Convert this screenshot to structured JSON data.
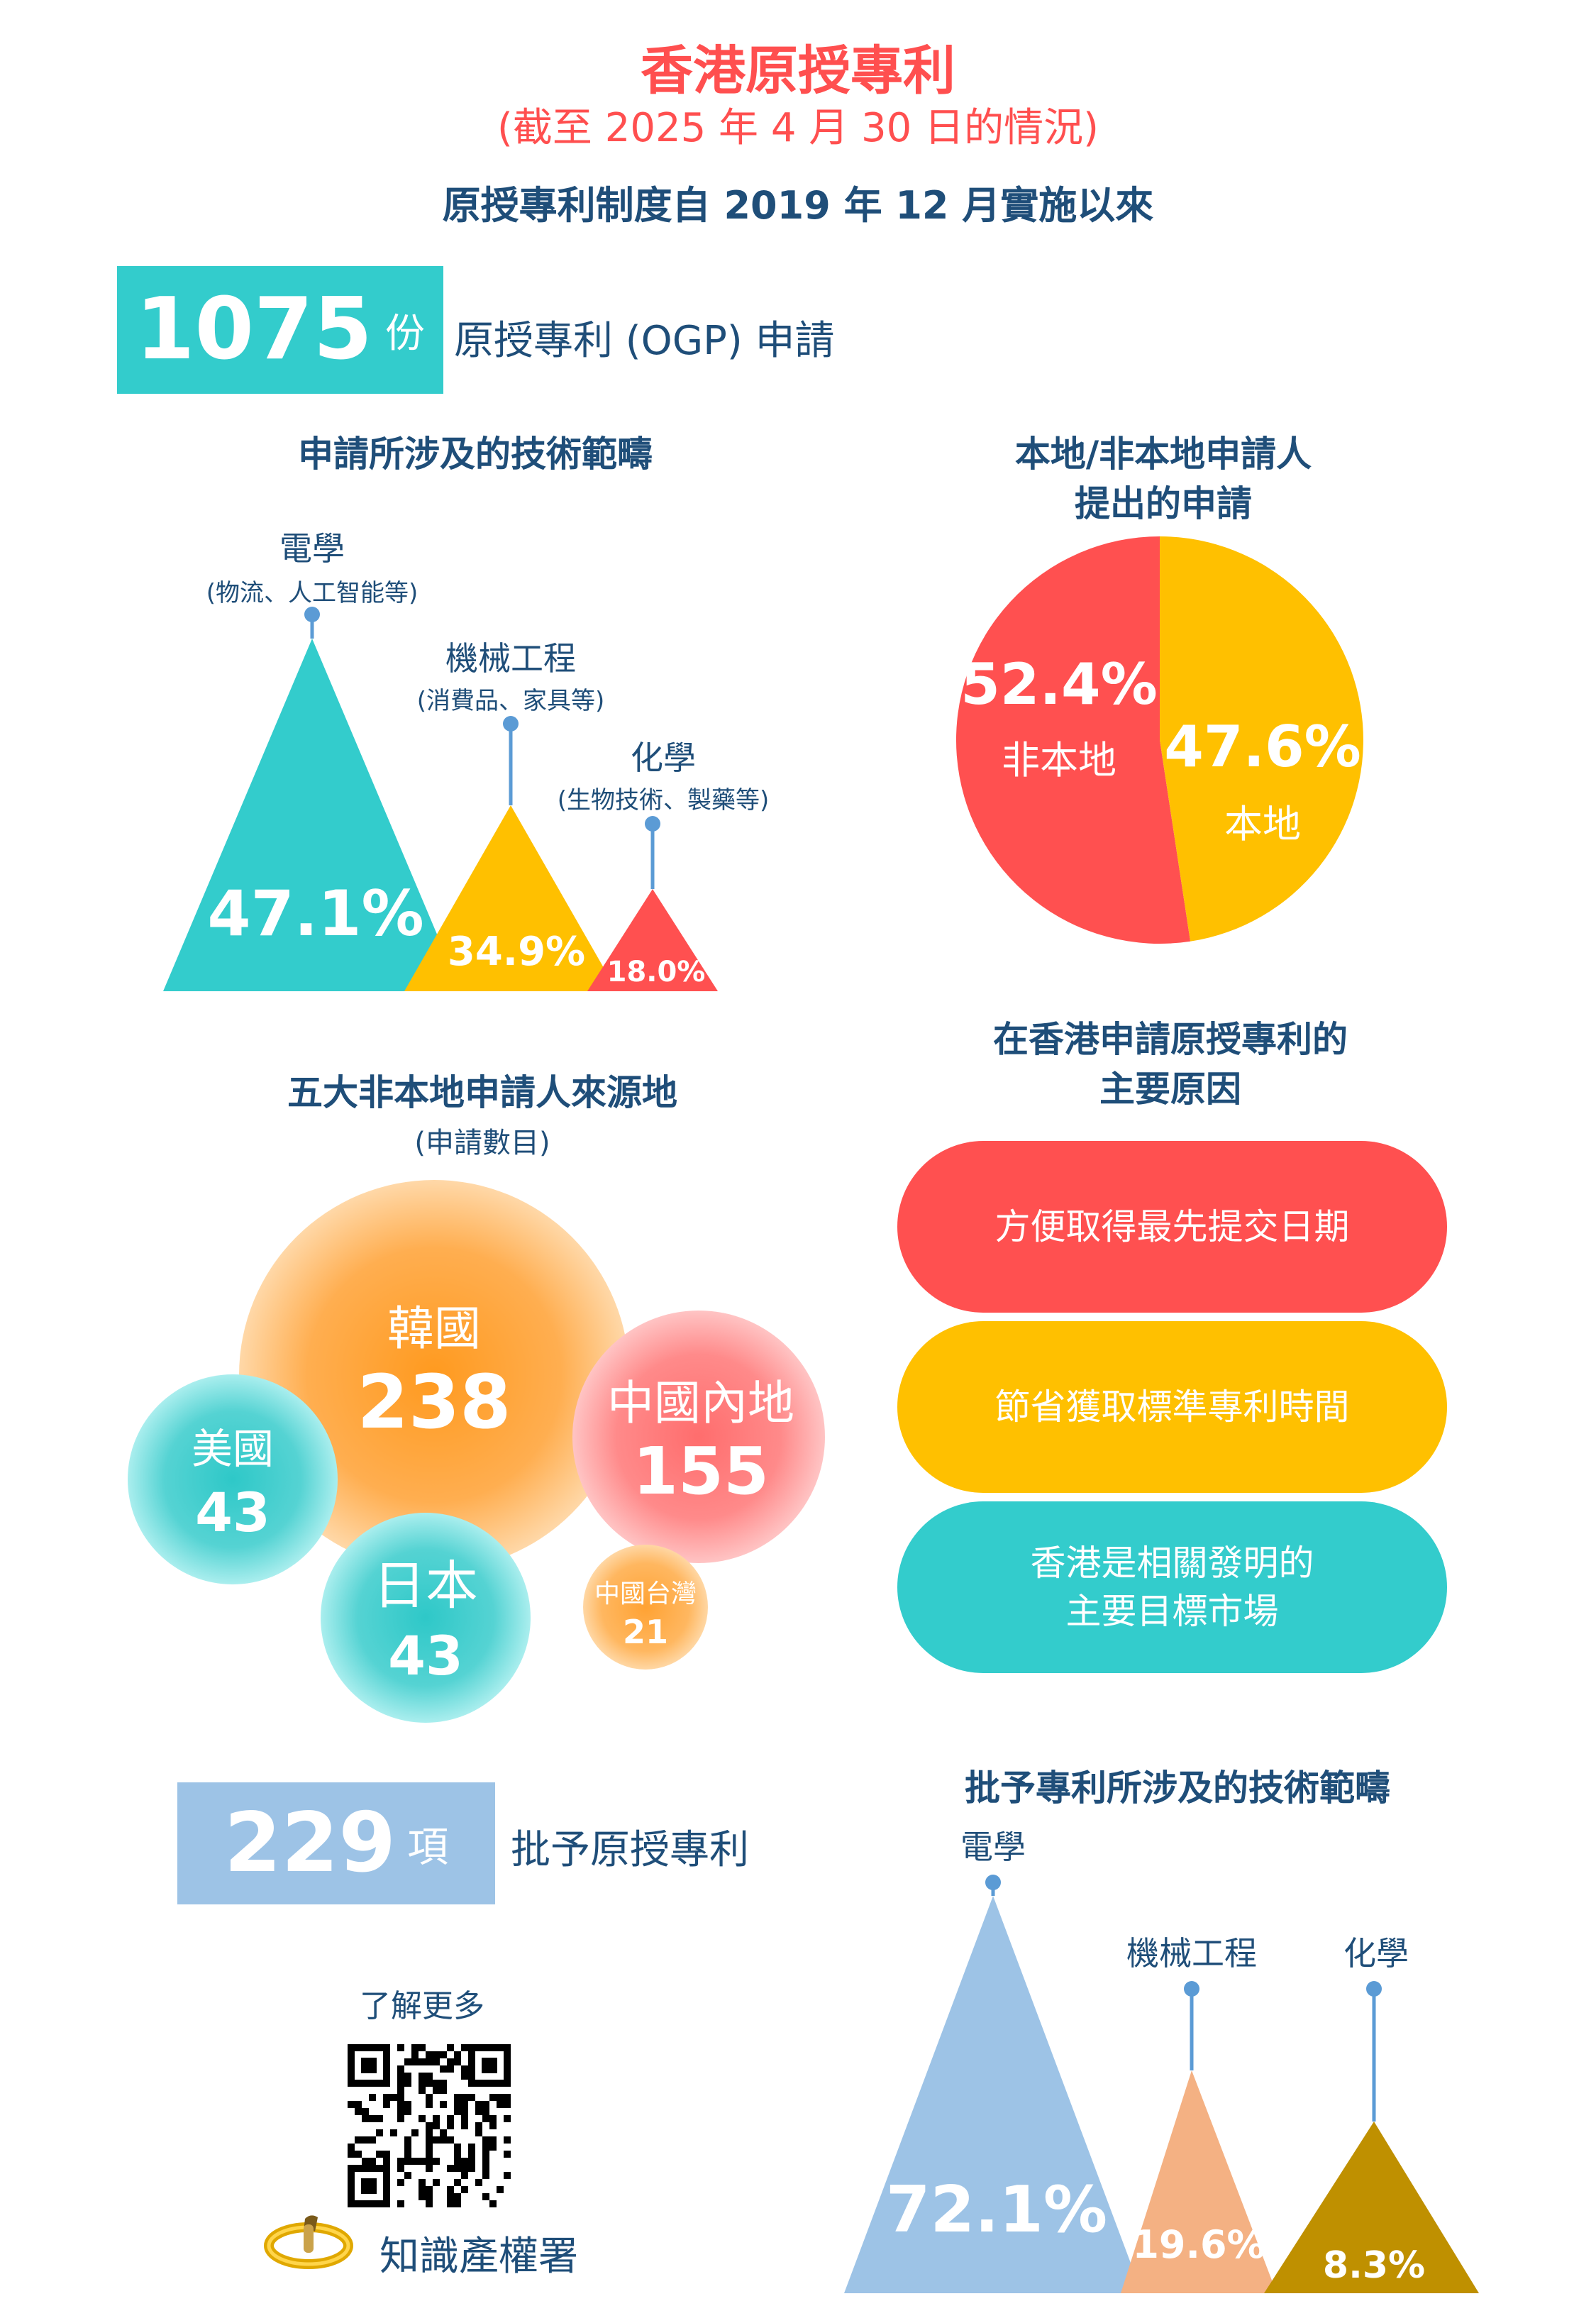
{
  "header": {
    "title": "香港原授專利",
    "subtitle": "(截至 2025 年 4 月 30 日的情況)",
    "since": "原授專利制度自 2019 年 12 月實施以來"
  },
  "applications": {
    "count": "1075",
    "unit": "份",
    "label": "原授專利 (OGP) 申請"
  },
  "applications_tech": {
    "heading": "申請所涉及的技術範疇",
    "items": [
      {
        "name": "電學",
        "detail": "(物流、人工智能等)",
        "percent": 47.1,
        "percent_label": "47.1%"
      },
      {
        "name": "機械工程",
        "detail": "(消費品、家具等)",
        "percent": 34.9,
        "percent_label": "34.9%"
      },
      {
        "name": "化學",
        "detail": "(生物技術、製藥等)",
        "percent": 18.0,
        "percent_label": "18.0%"
      }
    ]
  },
  "local_split": {
    "heading_line1": "本地/非本地申請人",
    "heading_line2": "提出的申請",
    "slices": [
      {
        "name": "非本地",
        "percent": 52.4,
        "percent_label": "52.4%",
        "color": "#ff5050"
      },
      {
        "name": "本地",
        "percent": 47.6,
        "percent_label": "47.6%",
        "color": "#ffc000"
      }
    ]
  },
  "top_sources": {
    "heading": "五大非本地申請人來源地",
    "subheading": "(申請數目)",
    "items": [
      {
        "name": "韓國",
        "value": "238"
      },
      {
        "name": "中國內地",
        "value": "155"
      },
      {
        "name": "美國",
        "value": "43"
      },
      {
        "name": "日本",
        "value": "43"
      },
      {
        "name": "中國台灣",
        "value": "21"
      }
    ]
  },
  "reasons": {
    "heading_line1": "在香港申請原授專利的",
    "heading_line2": "主要原因",
    "items": [
      {
        "line1": "方便取得最先提交日期",
        "line2": "",
        "color": "#ff5050"
      },
      {
        "line1": "節省獲取標準專利時間",
        "line2": "",
        "color": "#ffc000"
      },
      {
        "line1": "香港是相關發明的",
        "line2": "主要目標市場",
        "color": "#33cccc"
      }
    ]
  },
  "granted": {
    "count": "229",
    "unit": "項",
    "label": "批予原授專利"
  },
  "granted_tech": {
    "heading": "批予專利所涉及的技術範疇",
    "items": [
      {
        "name": "電學",
        "percent": 72.1,
        "percent_label": "72.1%"
      },
      {
        "name": "機械工程",
        "percent": 19.6,
        "percent_label": "19.6%"
      },
      {
        "name": "化學",
        "percent": 8.3,
        "percent_label": "8.3%"
      }
    ]
  },
  "footer": {
    "learn_more": "了解更多",
    "org": "知識產權署"
  }
}
